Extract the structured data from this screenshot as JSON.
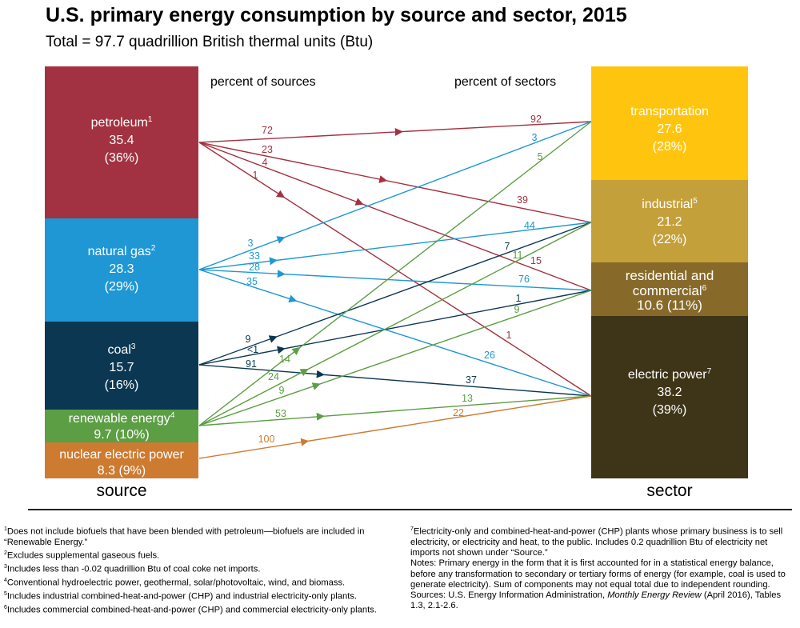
{
  "title": "U.S. primary energy consumption by source and sector, 2015",
  "subtitle": "Total = 97.7 quadrillion British thermal units (Btu)",
  "chart_data": {
    "type": "flow",
    "headers": {
      "left": "percent of sources",
      "right": "percent of sectors"
    },
    "axis_labels": {
      "source": "source",
      "sector": "sector"
    },
    "sources": [
      {
        "id": "petroleum",
        "label": "petroleum",
        "sup": "1",
        "value": "35.4",
        "percent": "(36%)",
        "color": "#a23241"
      },
      {
        "id": "natural_gas",
        "label": "natural gas",
        "sup": "2",
        "value": "28.3",
        "percent": "(29%)",
        "color": "#1f97d4"
      },
      {
        "id": "coal",
        "label": "coal",
        "sup": "3",
        "value": "15.7",
        "percent": "(16%)",
        "color": "#0c3752"
      },
      {
        "id": "renewable",
        "label": "renewable energy",
        "sup": "4",
        "value": "9.7",
        "percent": "(10%)",
        "color": "#5c9e43"
      },
      {
        "id": "nuclear",
        "label": "nuclear electric power",
        "sup": "",
        "value": "8.3",
        "percent": "(9%)",
        "color": "#cd7b31"
      }
    ],
    "sectors": [
      {
        "id": "transportation",
        "label": "transportation",
        "sup": "",
        "value": "27.6",
        "percent": "(28%)",
        "color": "#ffc50e"
      },
      {
        "id": "industrial",
        "label": "industrial",
        "sup": "5",
        "value": "21.2",
        "percent": "(22%)",
        "color": "#c4a03a"
      },
      {
        "id": "residential",
        "label": "residential and commercial",
        "sup": "6",
        "value": "10.6",
        "percent": "(11%)",
        "color": "#876a2a"
      },
      {
        "id": "electric",
        "label": "electric power",
        "sup": "7",
        "value": "38.2",
        "percent": "(39%)",
        "color": "#3e3417"
      }
    ],
    "flows": [
      {
        "source": "petroleum",
        "sector": "transportation",
        "pct_of_source": "72",
        "pct_of_sector": "92"
      },
      {
        "source": "petroleum",
        "sector": "industrial",
        "pct_of_source": "23",
        "pct_of_sector": "39"
      },
      {
        "source": "petroleum",
        "sector": "residential",
        "pct_of_source": "4",
        "pct_of_sector": "15"
      },
      {
        "source": "petroleum",
        "sector": "electric",
        "pct_of_source": "1",
        "pct_of_sector": "1"
      },
      {
        "source": "natural_gas",
        "sector": "transportation",
        "pct_of_source": "3",
        "pct_of_sector": "3"
      },
      {
        "source": "natural_gas",
        "sector": "industrial",
        "pct_of_source": "33",
        "pct_of_sector": "44"
      },
      {
        "source": "natural_gas",
        "sector": "residential",
        "pct_of_source": "28",
        "pct_of_sector": "76"
      },
      {
        "source": "natural_gas",
        "sector": "electric",
        "pct_of_source": "35",
        "pct_of_sector": "26"
      },
      {
        "source": "coal",
        "sector": "industrial",
        "pct_of_source": "9",
        "pct_of_sector": "7"
      },
      {
        "source": "coal",
        "sector": "residential",
        "pct_of_source": "<1",
        "pct_of_sector": "1"
      },
      {
        "source": "coal",
        "sector": "electric",
        "pct_of_source": "91",
        "pct_of_sector": "37"
      },
      {
        "source": "renewable",
        "sector": "transportation",
        "pct_of_source": "14",
        "pct_of_sector": "5"
      },
      {
        "source": "renewable",
        "sector": "industrial",
        "pct_of_source": "24",
        "pct_of_sector": "11"
      },
      {
        "source": "renewable",
        "sector": "residential",
        "pct_of_source": "9",
        "pct_of_sector": "9"
      },
      {
        "source": "renewable",
        "sector": "electric",
        "pct_of_source": "53",
        "pct_of_sector": "13"
      },
      {
        "source": "nuclear",
        "sector": "electric",
        "pct_of_source": "100",
        "pct_of_sector": "22"
      }
    ]
  },
  "notes_left": [
    {
      "sup": "1",
      "text": "Does not include biofuels that have been blended with petroleum—biofuels are included in “Renewable Energy.”"
    },
    {
      "sup": "2",
      "text": "Excludes supplemental gaseous fuels."
    },
    {
      "sup": "3",
      "text": "Includes less than -0.02 quadrillion Btu of coal coke net imports."
    },
    {
      "sup": "4",
      "text": "Conventional hydroelectric power, geothermal, solar/photovoltaic, wind, and biomass."
    },
    {
      "sup": "5",
      "text": "Includes industrial combined-heat-and-power (CHP) and industrial electricity-only plants."
    },
    {
      "sup": "6",
      "text": "Includes commercial combined-heat-and-power (CHP) and commercial electricity-only plants."
    }
  ],
  "notes_right": {
    "note7_sup": "7",
    "note7": "Electricity-only and combined-heat-and-power (CHP) plants whose primary business is to sell electricity, or electricity and heat, to the public. Includes 0.2 quadrillion Btu of electricity net imports not shown under “Source.”",
    "notes": "Notes: Primary energy in the form that it is first accounted for in a statistical energy balance, before any transformation to secondary or tertiary forms of energy (for example, coal is used to generate electricity). Sum of components may not equal total due to independent rounding.",
    "sources_prefix": "Sources: U.S. Energy Information Administration, ",
    "sources_title": "Monthly Energy Review",
    "sources_suffix": " (April 2016), Tables 1.3, 2.1-2.6."
  }
}
